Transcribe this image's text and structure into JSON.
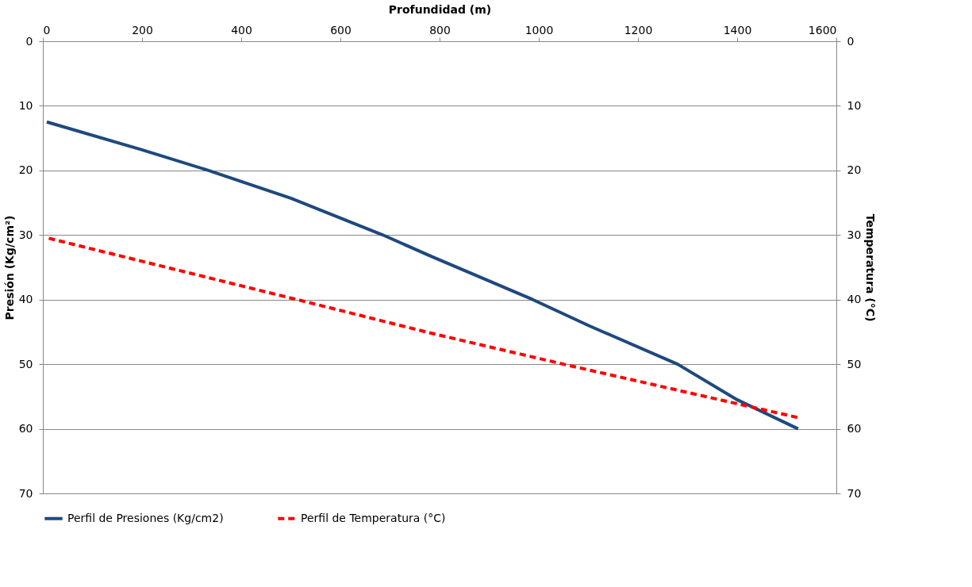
{
  "chart_data": {
    "type": "line",
    "xlabel": "Profundidad (m)",
    "ylabel": "Presión (Kg/cm²)",
    "y2label": "Temperatura (°C)",
    "xlim": [
      0,
      1600
    ],
    "xticks": [
      0,
      200,
      400,
      600,
      800,
      1000,
      1200,
      1400,
      1600
    ],
    "ylim": [
      70,
      0
    ],
    "yticks": [
      0,
      10,
      20,
      30,
      40,
      50,
      60,
      70
    ],
    "y2lim": [
      70,
      0
    ],
    "y2ticks": [
      0,
      10,
      20,
      30,
      40,
      50,
      60,
      70
    ],
    "grid": "y",
    "legend": "bottom",
    "marker": "none",
    "series": [
      {
        "name": "Perfil de Presiones (Kg/cm2)",
        "color": "#1f497d",
        "line_style": "solid",
        "x": [
          8,
          200,
          334,
          500,
          686,
          783,
          988,
          1100,
          1280,
          1400,
          1523
        ],
        "values": [
          12.5,
          16.8,
          20,
          24.3,
          30,
          33.3,
          40,
          44.0,
          50,
          55.5,
          60
        ]
      },
      {
        "name": "Perfil de Temperatura (°C)",
        "color": "#ff0000",
        "line_style": "dashed",
        "axis": "y2",
        "x": [
          12,
          513,
          783,
          1050,
          1525
        ],
        "values": [
          30.5,
          40,
          45.2,
          50,
          58.3
        ]
      }
    ]
  }
}
